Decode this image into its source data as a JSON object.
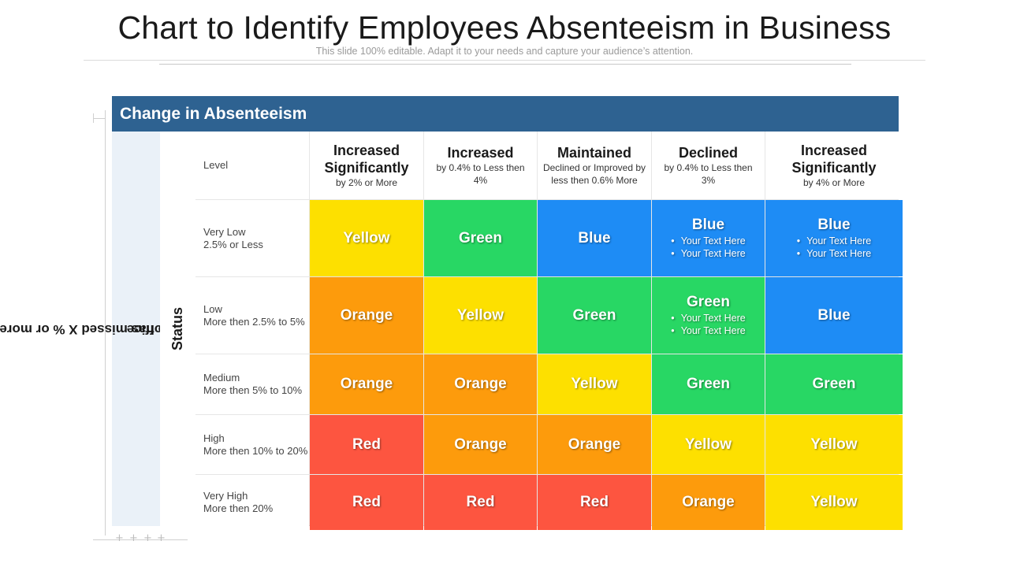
{
  "title": "Chart to Identify Employees Absenteeism in Business",
  "subtitle": "This slide 100% editable. Adapt  it to your needs and capture your audience’s attention.",
  "header": "Change in Absenteeism",
  "side_label_line1": "% of employees who has missed X % or more work",
  "side_label_line2": "office",
  "status_label": "Status",
  "level_label": "Level",
  "columns": [
    {
      "main": "Increased Significantly",
      "sub": "by 2% or More"
    },
    {
      "main": "Increased",
      "sub": "by 0.4% to Less then 4%"
    },
    {
      "main": "Maintained",
      "sub": "Declined or Improved  by less then 0.6% More"
    },
    {
      "main": "Declined",
      "sub": "by 0.4% to Less then 3%"
    },
    {
      "main": "Increased Significantly",
      "sub": "by 4% or More"
    }
  ],
  "rows": [
    {
      "label": "Very Low",
      "desc": "2.5% or Less"
    },
    {
      "label": "Low",
      "desc": "More then 2.5% to 5%"
    },
    {
      "label": "Medium",
      "desc": "More then 5% to 10%"
    },
    {
      "label": "High",
      "desc": "More then 10% to 20%"
    },
    {
      "label": "Very High",
      "desc": "More then 20%"
    }
  ],
  "cells": [
    [
      "Yellow",
      "Green",
      "Blue",
      "Blue",
      "Blue"
    ],
    [
      "Orange",
      "Yellow",
      "Green",
      "Green",
      "Blue"
    ],
    [
      "Orange",
      "Orange",
      "Yellow",
      "Green",
      "Green"
    ],
    [
      "Red",
      "Orange",
      "Orange",
      "Yellow",
      "Yellow"
    ],
    [
      "Red",
      "Red",
      "Red",
      "Orange",
      "Yellow"
    ]
  ],
  "bullet_text": "Your Text Here",
  "colors": {
    "Yellow": "#fde000",
    "Green": "#28d764",
    "Blue": "#1e8cf5",
    "Orange": "#fd9b0c",
    "Red": "#fd5540",
    "header": "#2e6291"
  }
}
